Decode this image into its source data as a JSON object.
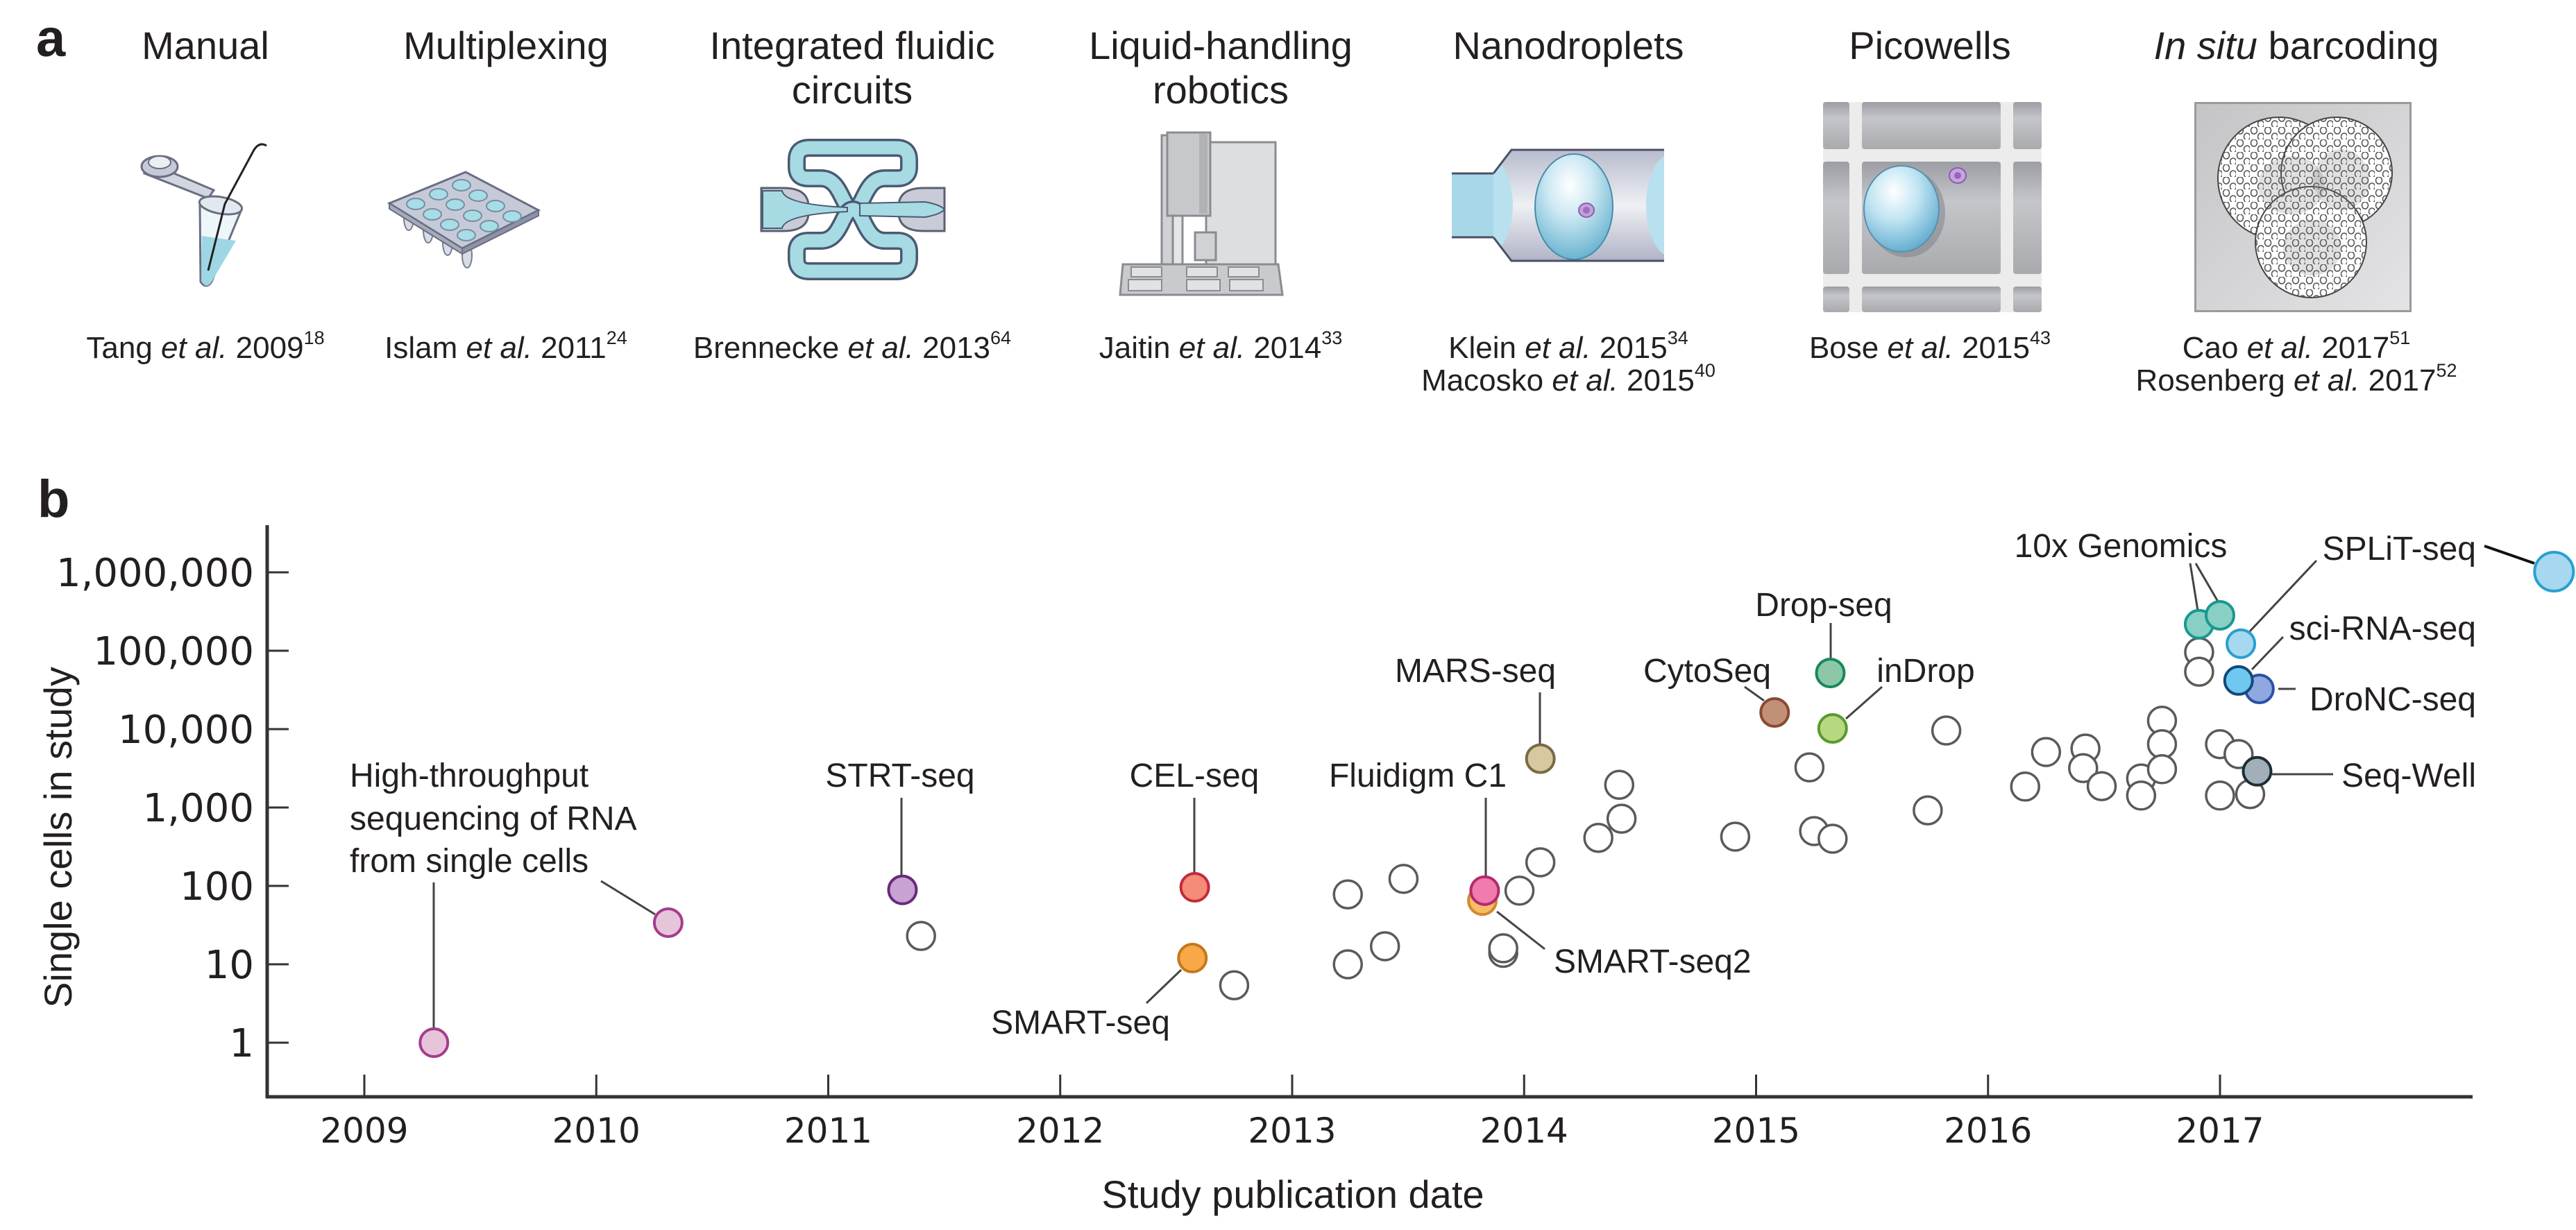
{
  "panel_a": {
    "label": "a",
    "columns": [
      {
        "icon": "microcentrifuge-tube-icon",
        "title_lines": [
          "Manual"
        ],
        "citations": [
          {
            "author": "Tang",
            "etal": "et al.",
            "year": "2009",
            "ref": "18"
          }
        ]
      },
      {
        "icon": "multiwell-plate-icon",
        "title_lines": [
          "Multiplexing"
        ],
        "citations": [
          {
            "author": "Islam",
            "etal": "et al.",
            "year": "2011",
            "ref": "24"
          }
        ]
      },
      {
        "icon": "fluidic-circuit-icon",
        "title_lines": [
          "Integrated fluidic",
          "circuits"
        ],
        "citations": [
          {
            "author": "Brennecke",
            "etal": "et al.",
            "year": "2013",
            "ref": "64"
          }
        ]
      },
      {
        "icon": "liquid-handling-robot-icon",
        "title_lines": [
          "Liquid-handling",
          "robotics"
        ],
        "citations": [
          {
            "author": "Jaitin",
            "etal": "et al.",
            "year": "2014",
            "ref": "33"
          }
        ]
      },
      {
        "icon": "nanodroplet-icon",
        "title_lines": [
          "Nanodroplets"
        ],
        "citations": [
          {
            "author": "Klein",
            "etal": "et al.",
            "year": "2015",
            "ref": "34"
          },
          {
            "author": "Macosko",
            "etal": "et al.",
            "year": "2015",
            "ref": "40"
          }
        ]
      },
      {
        "icon": "picowell-icon",
        "title_lines": [
          "Picowells"
        ],
        "citations": [
          {
            "author": "Bose",
            "etal": "et al.",
            "year": "2015",
            "ref": "43"
          }
        ]
      },
      {
        "icon": "in-situ-barcoding-icon",
        "title_italic": "In situ",
        "title_rest": "barcoding",
        "citations": [
          {
            "author": "Cao",
            "etal": "et al.",
            "year": "2017",
            "ref": "51"
          },
          {
            "author": "Rosenberg",
            "etal": "et al.",
            "year": "2017",
            "ref": "52"
          }
        ]
      }
    ]
  },
  "panel_b": {
    "label": "b"
  },
  "chart_data": {
    "type": "scatter",
    "title": "",
    "xlabel": "Study publication date",
    "ylabel": "Single cells in study",
    "xscale": "linear",
    "yscale": "log",
    "xlim": [
      2008.58,
      2018.09
    ],
    "ylim": [
      0.2,
      4000000
    ],
    "x_ticks": [
      2009,
      2010,
      2011,
      2012,
      2013,
      2014,
      2015,
      2016,
      2017
    ],
    "x_tick_labels": [
      "2009",
      "2010",
      "2011",
      "2012",
      "2013",
      "2014",
      "2015",
      "2016",
      "2017"
    ],
    "y_ticks": [
      1,
      10,
      100,
      1000,
      10000,
      100000,
      1000000
    ],
    "y_tick_labels": [
      "1",
      "10",
      "100",
      "1,000",
      "10,000",
      "100,000",
      "1,000,000"
    ],
    "grid": false,
    "legend": "none",
    "series": [
      {
        "fill": "#ffffff",
        "stroke": "#5a5a5a",
        "points": [
          [
            2011.4,
            23
          ],
          [
            2012.75,
            5.4
          ],
          [
            2013.24,
            78
          ],
          [
            2013.24,
            10
          ],
          [
            2013.4,
            17
          ],
          [
            2013.48,
            123
          ],
          [
            2013.98,
            87
          ],
          [
            2013.91,
            14
          ],
          [
            2013.91,
            16
          ],
          [
            2014.07,
            200
          ],
          [
            2014.32,
            410
          ],
          [
            2014.42,
            720
          ],
          [
            2014.41,
            1950
          ],
          [
            2014.91,
            425
          ],
          [
            2015.23,
            3250
          ],
          [
            2015.25,
            500
          ],
          [
            2015.33,
            400
          ],
          [
            2015.74,
            920
          ],
          [
            2015.82,
            9600
          ],
          [
            2016.16,
            1850
          ],
          [
            2016.25,
            5100
          ],
          [
            2016.42,
            5650
          ],
          [
            2016.41,
            3180
          ],
          [
            2016.49,
            1870
          ],
          [
            2016.66,
            2350
          ],
          [
            2016.66,
            1420
          ],
          [
            2016.75,
            12800
          ],
          [
            2016.75,
            6420
          ],
          [
            2016.75,
            3080
          ],
          [
            2016.91,
            96000
          ],
          [
            2016.91,
            54000
          ],
          [
            2017.0,
            6420
          ],
          [
            2017.08,
            4800
          ],
          [
            2017.0,
            1420
          ],
          [
            2017.13,
            1480
          ]
        ]
      },
      {
        "label_lines": [
          "High-throughput",
          "sequencing of RNA",
          "from single cells"
        ],
        "fill": "#e6c4da",
        "stroke": "#a43c8e",
        "points": [
          [
            2009.3,
            1
          ],
          [
            2010.31,
            34
          ]
        ]
      },
      {
        "name": "STRT-seq",
        "fill": "#c7a2d2",
        "stroke": "#6a2a7c",
        "points": [
          [
            2011.32,
            89
          ]
        ]
      },
      {
        "name": "CEL-seq",
        "fill": "#f48c78",
        "stroke": "#c62a3a",
        "points": [
          [
            2012.58,
            96
          ]
        ]
      },
      {
        "name": "SMART-seq",
        "fill": "#f8a846",
        "stroke": "#c4781e",
        "points": [
          [
            2012.57,
            12
          ]
        ]
      },
      {
        "name": "SMART-seq2",
        "fill": "#f8bc66",
        "stroke": "#d08a30",
        "points": [
          [
            2013.82,
            65
          ]
        ]
      },
      {
        "name": "Fluidigm C1",
        "fill": "#f07cae",
        "stroke": "#b42a6e",
        "points": [
          [
            2013.83,
            87
          ]
        ]
      },
      {
        "name": "MARS-seq",
        "fill": "#d8c8a0",
        "stroke": "#7a6a46",
        "points": [
          [
            2014.07,
            4200
          ]
        ]
      },
      {
        "name": "CytoSeq",
        "fill": "#c09078",
        "stroke": "#8a4a30",
        "points": [
          [
            2015.08,
            16300
          ]
        ]
      },
      {
        "name": "Drop-seq",
        "fill": "#8cc8a8",
        "stroke": "#18885a",
        "points": [
          [
            2015.32,
            52000
          ]
        ]
      },
      {
        "name": "inDrop",
        "fill": "#b8d880",
        "stroke": "#5a9a30",
        "points": [
          [
            2015.33,
            10200
          ]
        ]
      },
      {
        "name": "10x Genomics",
        "fill": "#88d0c4",
        "stroke": "#1a9890",
        "points": [
          [
            2016.91,
            218000
          ],
          [
            2017.0,
            283000
          ]
        ]
      },
      {
        "name": "SPLiT-seq",
        "fill": "#a8d8f0",
        "stroke": "#28a0d0",
        "points": [
          [
            2017.09,
            123000
          ],
          [
            2018.44,
            1020000
          ]
        ]
      },
      {
        "name": "DroNC-seq",
        "fill": "#90a8e0",
        "stroke": "#2a50a8",
        "points": [
          [
            2017.17,
            32600
          ]
        ]
      },
      {
        "name": "sci-RNA-seq",
        "fill": "#70c8f0",
        "stroke": "#124a7a",
        "points": [
          [
            2017.08,
            41700
          ]
        ]
      },
      {
        "name": "Seq-Well",
        "fill": "#a0afb8",
        "stroke": "#1e2e36",
        "points": [
          [
            2017.16,
            2900
          ]
        ]
      }
    ]
  }
}
